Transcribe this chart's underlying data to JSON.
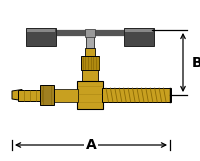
{
  "bg_color": "#ffffff",
  "line_color": "#000000",
  "brass_color": "#c8a020",
  "brass_mid": "#b08a10",
  "brass_dark": "#806000",
  "handle_bar_color": "#606060",
  "handle_end_color": "#484848",
  "handle_center_color": "#888888",
  "dim_color": "#000000",
  "label_A": "A",
  "label_B": "B",
  "figsize": [
    2.0,
    1.61
  ],
  "dpi": 100
}
